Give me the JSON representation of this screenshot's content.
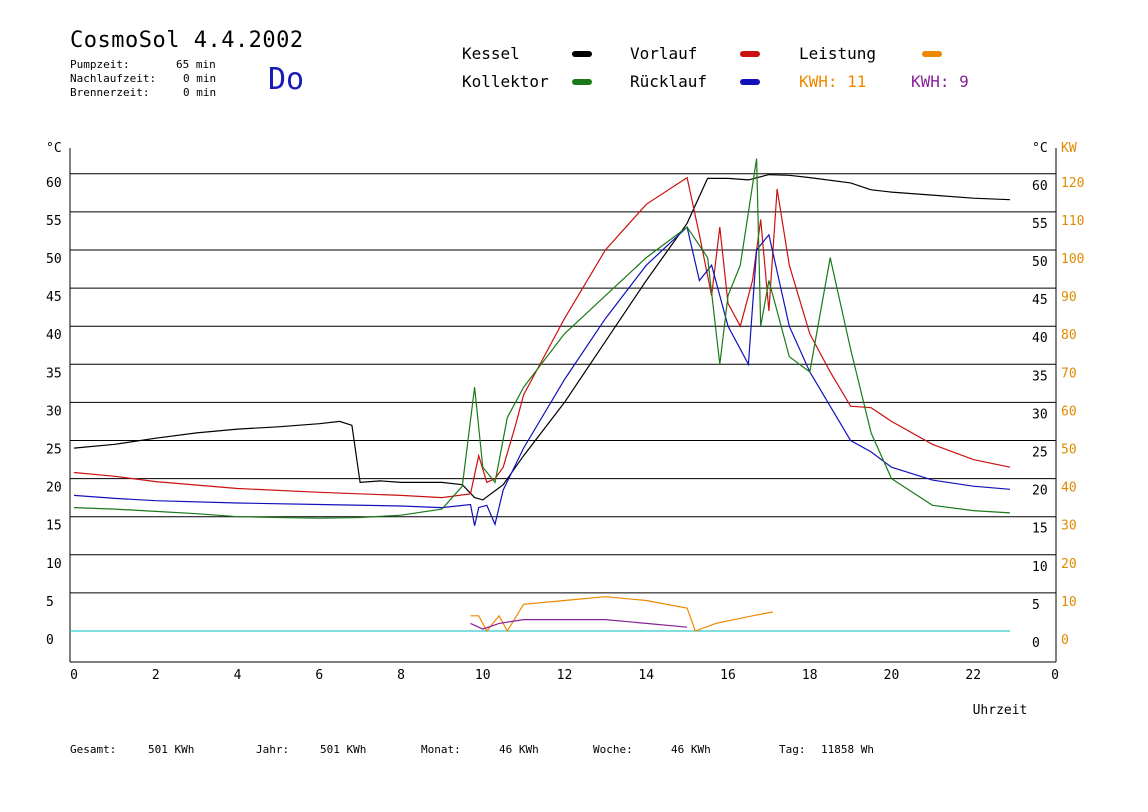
{
  "header": {
    "title": "CosmoSol 4.4.2002",
    "pump_label": "Pumpzeit:",
    "pump_value": "65 min",
    "nachlauf_label": "Nachlaufzeit:",
    "nachlauf_value": "0 min",
    "brenner_label": "Brennerzeit:",
    "brenner_value": "0 min",
    "day": "Do"
  },
  "legend": {
    "kessel": "Kessel",
    "kollektor": "Kollektor",
    "vorlauf": "Vorlauf",
    "ruecklauf": "Rücklauf",
    "leistung": "Leistung",
    "kwh1": "KWH: 11",
    "kwh2": "KWH: 9"
  },
  "footer": {
    "gesamt_label": "Gesamt:",
    "gesamt_value": "501 KWh",
    "jahr_label": "Jahr:",
    "jahr_value": "501 KWh",
    "monat_label": "Monat:",
    "monat_value": "46 KWh",
    "woche_label": "Woche:",
    "woche_value": "46 KWh",
    "tag_label": "Tag:",
    "tag_value": "11858 Wh"
  },
  "chart_data": {
    "type": "line",
    "xlabel": "Uhrzeit",
    "ylabel_left": "°C",
    "ylabel_right_1": "°C",
    "ylabel_right_2": "KW",
    "x_ticks": [
      "0",
      "2",
      "4",
      "6",
      "8",
      "10",
      "12",
      "14",
      "16",
      "18",
      "20",
      "22",
      "0"
    ],
    "y_ticks": [
      0,
      5,
      10,
      15,
      20,
      25,
      30,
      35,
      40,
      45,
      50,
      55,
      60
    ],
    "y2_ticks": [
      0,
      10,
      20,
      30,
      40,
      50,
      60,
      70,
      80,
      90,
      100,
      110,
      120
    ],
    "xlim": [
      0,
      24
    ],
    "ylim": [
      -3.5,
      62.5
    ],
    "grid": true,
    "colors": {
      "kessel": "#000000",
      "kollektor": "#1a7a1a",
      "vorlauf": "#cc1111",
      "ruecklauf": "#1111bb",
      "leistung": "#ee8800",
      "kwh2": "#882299",
      "baseline": "#33cccc"
    },
    "series": [
      {
        "name": "Kessel",
        "color": "#000000",
        "x": [
          0,
          1,
          2,
          3,
          4,
          5,
          6,
          6.5,
          6.8,
          7.0,
          7.5,
          8,
          9,
          9.5,
          9.8,
          10.0,
          10.5,
          11,
          12,
          13,
          14,
          15,
          15.5,
          16,
          16.5,
          17,
          17.5,
          18,
          19,
          19.5,
          20,
          21,
          22,
          22.9
        ],
        "y": [
          24,
          24.5,
          25.3,
          26,
          26.5,
          26.8,
          27.2,
          27.5,
          27,
          19.5,
          19.7,
          19.5,
          19.5,
          19.2,
          17.5,
          17.2,
          19.2,
          23,
          30,
          38,
          46,
          53.5,
          59.4,
          59.4,
          59.2,
          59.9,
          59.8,
          59.5,
          58.8,
          57.9,
          57.6,
          57.2,
          56.8,
          56.6
        ]
      },
      {
        "name": "Vorlauf",
        "color": "#cc1111",
        "x": [
          0,
          1,
          2,
          4,
          6,
          8,
          9,
          9.7,
          9.9,
          10.1,
          10.3,
          10.5,
          10.8,
          11,
          12,
          13,
          14,
          15,
          15.3,
          15.6,
          15.8,
          16,
          16.3,
          16.6,
          16.8,
          17.0,
          17.2,
          17.5,
          18,
          18.5,
          19,
          19.5,
          20,
          21,
          22,
          22.9
        ],
        "y": [
          20.8,
          20.3,
          19.6,
          18.7,
          18.2,
          17.8,
          17.5,
          18,
          23,
          19.5,
          20,
          21.5,
          27,
          31,
          41,
          50,
          56,
          59.5,
          52,
          44,
          53,
          43,
          40,
          46,
          54,
          42,
          58,
          48,
          39,
          34,
          29.5,
          29.3,
          27.5,
          24.5,
          22.5,
          21.5
        ]
      },
      {
        "name": "Rücklauf",
        "color": "#1111bb",
        "x": [
          0,
          1,
          2,
          4,
          6,
          8,
          9,
          9.7,
          9.8,
          9.9,
          10.1,
          10.3,
          10.5,
          11,
          12,
          13,
          14,
          15,
          15.3,
          15.6,
          16,
          16.5,
          16.7,
          17,
          17.5,
          18,
          19,
          19.5,
          20,
          21,
          22,
          22.9
        ],
        "y": [
          17.8,
          17.4,
          17.1,
          16.8,
          16.6,
          16.4,
          16.2,
          16.6,
          13.8,
          16.2,
          16.5,
          14.0,
          18.5,
          24,
          33,
          41,
          48,
          53,
          46,
          48,
          40,
          35,
          50,
          52,
          40,
          34,
          25,
          23.5,
          21.5,
          19.8,
          19.0,
          18.6
        ]
      },
      {
        "name": "Kollektor",
        "color": "#1a7a1a",
        "x": [
          0,
          1,
          2,
          3,
          4,
          5,
          6,
          7,
          8,
          9,
          9.5,
          9.8,
          10.0,
          10.3,
          10.6,
          11,
          12,
          13,
          14,
          15,
          15.5,
          15.8,
          16,
          16.3,
          16.7,
          16.8,
          17,
          17.5,
          18,
          18.5,
          19,
          19.5,
          20,
          21,
          22,
          22.9
        ],
        "y": [
          16.2,
          16,
          15.7,
          15.4,
          15,
          14.9,
          14.8,
          14.9,
          15.2,
          16,
          19,
          32,
          21.5,
          19.5,
          28,
          32,
          39,
          44,
          49,
          53,
          49,
          35,
          44,
          48,
          62,
          40,
          46,
          36,
          34,
          49,
          37,
          26,
          20,
          16.5,
          15.8,
          15.5
        ]
      },
      {
        "name": "Leistung",
        "color": "#ee8800",
        "unit": "KW",
        "x": [
          9.7,
          9.9,
          10.1,
          10.4,
          10.6,
          11,
          12,
          13,
          14,
          15,
          15.2,
          15.7,
          16.6,
          17.1
        ],
        "y": [
          4,
          4,
          0,
          4,
          0,
          7,
          8,
          9,
          8,
          6,
          0,
          2,
          4,
          5
        ]
      },
      {
        "name": "KWH: 9",
        "color": "#882299",
        "unit": "KW",
        "x": [
          9.7,
          10.0,
          10.4,
          11,
          12,
          13,
          14,
          15
        ],
        "y": [
          2,
          0.5,
          2,
          3,
          3,
          3,
          2,
          1
        ]
      }
    ]
  }
}
